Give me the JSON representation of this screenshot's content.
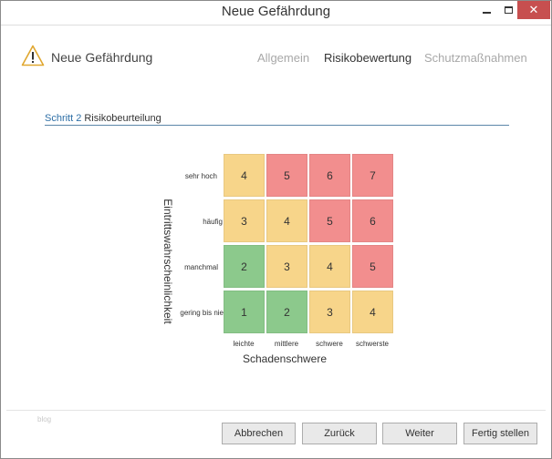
{
  "window": {
    "title": "Neue Gefährdung",
    "close_glyph": "✕"
  },
  "header": {
    "icon": "warning-icon",
    "title": "Neue Gefährdung",
    "tabs": [
      {
        "label": "Allgemein",
        "active": false
      },
      {
        "label": "Risikobewertung",
        "active": true
      },
      {
        "label": "Schutzmaßnahmen",
        "active": false
      }
    ]
  },
  "step": {
    "number": "Schritt 2",
    "name": "Risikobeurteilung"
  },
  "matrix": {
    "x_axis_label": "Schadenschwere",
    "y_axis_label": "Eintrittswahrscheinlichkeit",
    "columns": [
      "leichte",
      "mittlere",
      "schwere",
      "schwerste"
    ],
    "rows": [
      {
        "label": "sehr hoch",
        "cells": [
          {
            "value": "4",
            "level": "yellow"
          },
          {
            "value": "5",
            "level": "red"
          },
          {
            "value": "6",
            "level": "red"
          },
          {
            "value": "7",
            "level": "red"
          }
        ]
      },
      {
        "label": "häufig",
        "cells": [
          {
            "value": "3",
            "level": "yellow"
          },
          {
            "value": "4",
            "level": "yellow"
          },
          {
            "value": "5",
            "level": "red"
          },
          {
            "value": "6",
            "level": "red"
          }
        ]
      },
      {
        "label": "manchmal",
        "cells": [
          {
            "value": "2",
            "level": "green"
          },
          {
            "value": "3",
            "level": "yellow"
          },
          {
            "value": "4",
            "level": "yellow"
          },
          {
            "value": "5",
            "level": "red"
          }
        ]
      },
      {
        "label": "gering bis nie",
        "cells": [
          {
            "value": "1",
            "level": "green"
          },
          {
            "value": "2",
            "level": "green"
          },
          {
            "value": "3",
            "level": "yellow"
          },
          {
            "value": "4",
            "level": "yellow"
          }
        ]
      }
    ],
    "colors": {
      "green": "#8cc98c",
      "yellow": "#f7d58a",
      "red": "#f28e8e"
    }
  },
  "footer": {
    "watermark": "blog",
    "buttons": {
      "cancel": "Abbrechen",
      "back": "Zurück",
      "next": "Weiter",
      "finish": "Fertig stellen"
    }
  }
}
